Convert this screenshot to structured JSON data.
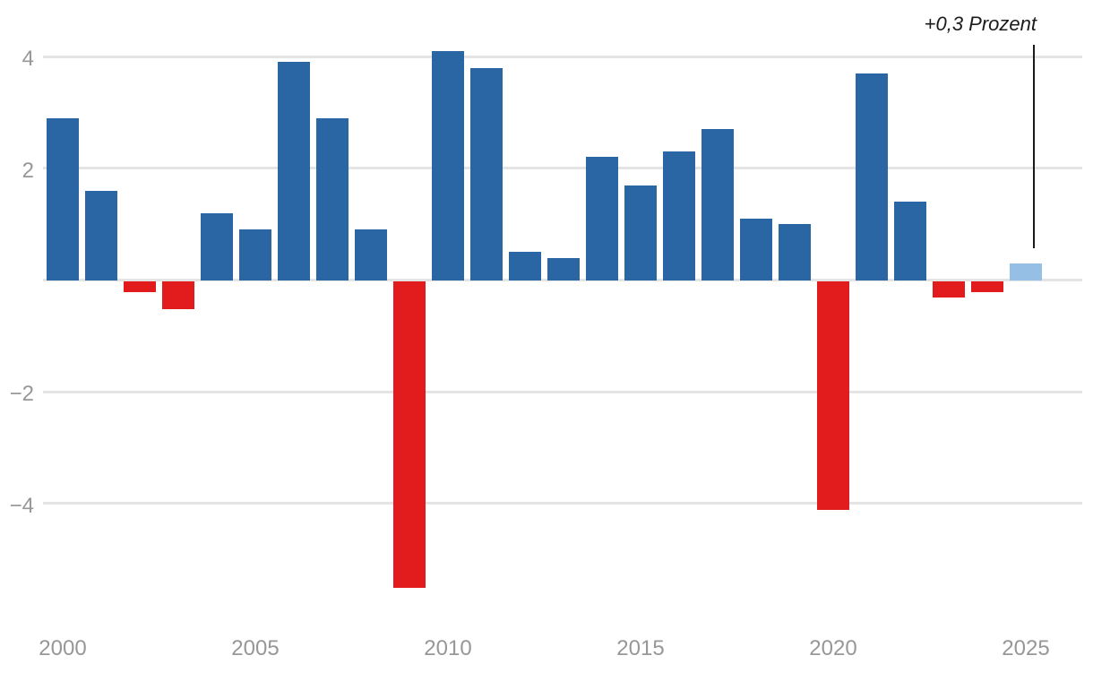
{
  "chart_data": {
    "type": "bar",
    "title": "",
    "ylabel": "",
    "xlabel": "",
    "unit": "Prozent",
    "categories": [
      2000,
      2001,
      2002,
      2003,
      2004,
      2005,
      2006,
      2007,
      2008,
      2009,
      2010,
      2011,
      2012,
      2013,
      2014,
      2015,
      2016,
      2017,
      2018,
      2019,
      2020,
      2021,
      2022,
      2023,
      2024,
      2025
    ],
    "values": [
      2.9,
      1.6,
      -0.2,
      -0.5,
      1.2,
      0.9,
      3.9,
      2.9,
      0.9,
      -5.5,
      4.1,
      3.8,
      0.5,
      0.4,
      2.2,
      1.7,
      2.3,
      2.7,
      1.1,
      1.0,
      -4.1,
      3.7,
      1.4,
      -0.3,
      -0.2,
      0.3
    ],
    "forecast_years": [
      2025
    ],
    "x_tick_labels": [
      "2000",
      "2005",
      "2010",
      "2015",
      "2020",
      "2025"
    ],
    "y_gridline_values": [
      4,
      2,
      0,
      -2,
      -4
    ],
    "y_tick_labels": [
      {
        "value": 4,
        "label": "4"
      },
      {
        "value": 2,
        "label": "2"
      },
      {
        "value": -2,
        "label": "−2"
      },
      {
        "value": -4,
        "label": "−4"
      }
    ],
    "ylim": [
      -5.9,
      4.4
    ],
    "grid": "horizontal",
    "legend": "none",
    "annotation": {
      "text": "+0,3 Prozent",
      "target_year": 2025
    },
    "colors": {
      "positive_bar": "#2b66a4",
      "negative_bar": "#e21c1c",
      "forecast_bar": "#95bfe5",
      "gridline": "#e4e4e4",
      "axis_label": "#979797",
      "annotation": "#1b1b1b"
    }
  }
}
